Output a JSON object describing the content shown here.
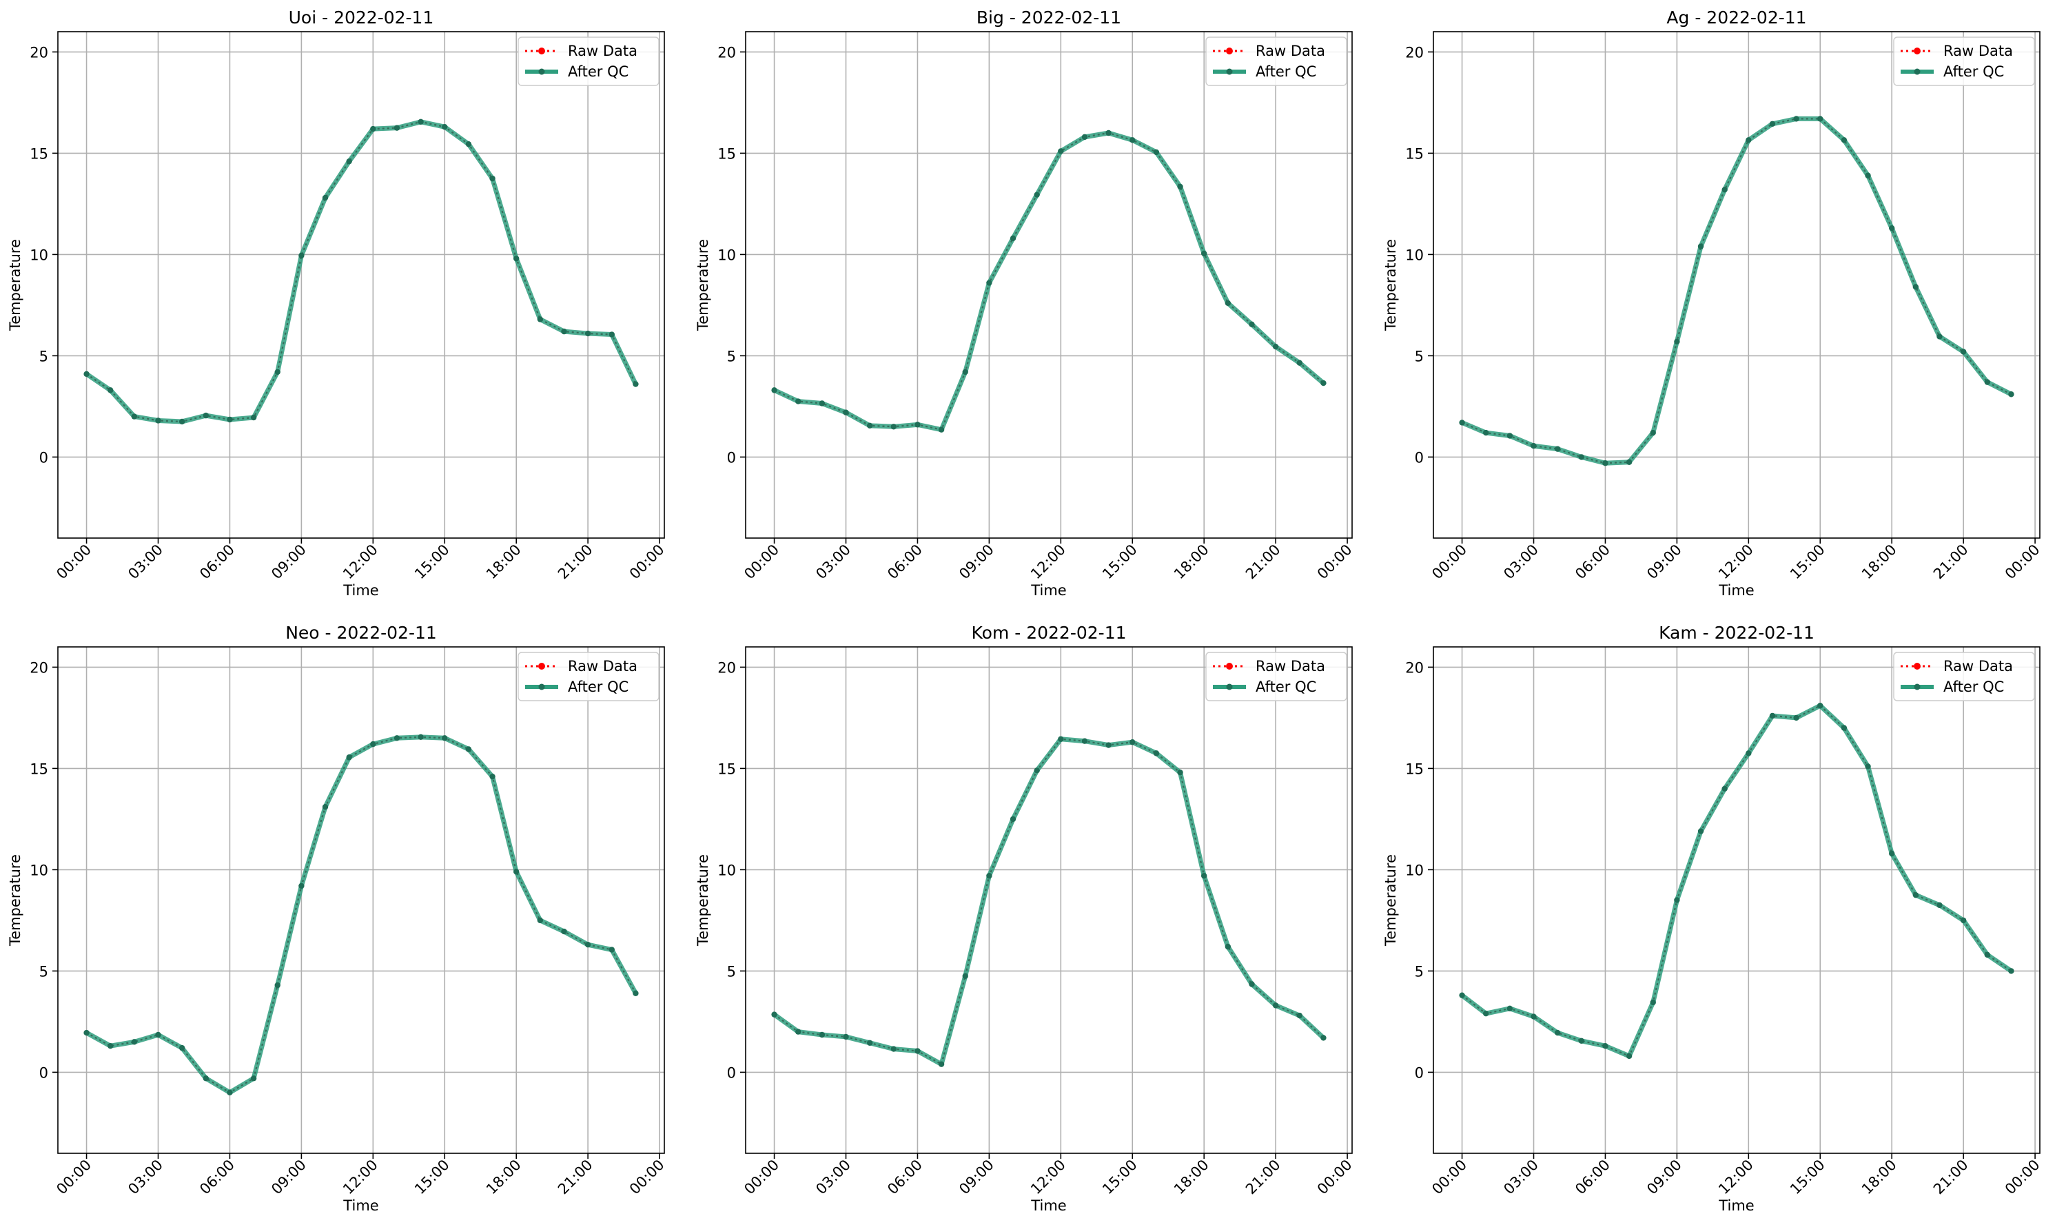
{
  "figure": {
    "legend_raw": "Raw Data",
    "legend_qc": "After QC",
    "xlabel": "Time",
    "ylabel": "Temperature",
    "xtick_labels": [
      "00:00",
      "03:00",
      "06:00",
      "09:00",
      "12:00",
      "15:00",
      "18:00",
      "21:00",
      "00:00"
    ],
    "ytick_labels": [
      "0",
      "5",
      "10",
      "15",
      "20"
    ],
    "colors": {
      "raw": "#ff0000",
      "qc": "#2e9e7e",
      "qc_dot": "#1f6e57",
      "grid": "#b0b0b0"
    }
  },
  "chart_data": [
    {
      "type": "line",
      "title": "Uoi - 2022-02-11",
      "xlabel": "Time",
      "ylabel": "Temperature",
      "ylim": [
        -4,
        21
      ],
      "xlim_hours": [
        -1.2,
        24.2
      ],
      "legend": "top-right",
      "grid": true,
      "x": [
        "00:00",
        "01:00",
        "02:00",
        "03:00",
        "04:00",
        "05:00",
        "06:00",
        "07:00",
        "08:00",
        "09:00",
        "10:00",
        "11:00",
        "12:00",
        "13:00",
        "14:00",
        "15:00",
        "16:00",
        "17:00",
        "18:00",
        "19:00",
        "20:00",
        "21:00",
        "22:00",
        "23:00"
      ],
      "series": [
        {
          "name": "Raw Data",
          "values": [
            4.1,
            3.3,
            2.0,
            1.8,
            1.75,
            2.05,
            1.85,
            1.95,
            4.2,
            9.95,
            12.8,
            14.6,
            16.2,
            16.25,
            16.55,
            16.3,
            15.45,
            13.75,
            9.8,
            6.8,
            6.2,
            6.1,
            6.05,
            3.6
          ]
        },
        {
          "name": "After QC",
          "values": [
            4.1,
            3.3,
            2.0,
            1.8,
            1.75,
            2.05,
            1.85,
            1.95,
            4.2,
            9.95,
            12.8,
            14.6,
            16.2,
            16.25,
            16.55,
            16.3,
            15.45,
            13.75,
            9.8,
            6.8,
            6.2,
            6.1,
            6.05,
            3.6
          ]
        }
      ]
    },
    {
      "type": "line",
      "title": "Big - 2022-02-11",
      "xlabel": "Time",
      "ylabel": "Temperature",
      "ylim": [
        -4,
        21
      ],
      "xlim_hours": [
        -1.2,
        24.2
      ],
      "legend": "top-right",
      "grid": true,
      "x": [
        "00:00",
        "01:00",
        "02:00",
        "03:00",
        "04:00",
        "05:00",
        "06:00",
        "07:00",
        "08:00",
        "09:00",
        "10:00",
        "11:00",
        "12:00",
        "13:00",
        "14:00",
        "15:00",
        "16:00",
        "17:00",
        "18:00",
        "19:00",
        "20:00",
        "21:00",
        "22:00",
        "23:00"
      ],
      "series": [
        {
          "name": "Raw Data",
          "values": [
            3.3,
            2.75,
            2.65,
            2.2,
            1.55,
            1.5,
            1.6,
            1.35,
            4.2,
            8.6,
            10.8,
            12.95,
            15.1,
            15.8,
            16.0,
            15.65,
            15.05,
            13.35,
            10.05,
            7.6,
            6.55,
            5.45,
            4.65,
            3.65
          ]
        },
        {
          "name": "After QC",
          "values": [
            3.3,
            2.75,
            2.65,
            2.2,
            1.55,
            1.5,
            1.6,
            1.35,
            4.2,
            8.6,
            10.8,
            12.95,
            15.1,
            15.8,
            16.0,
            15.65,
            15.05,
            13.35,
            10.05,
            7.6,
            6.55,
            5.45,
            4.65,
            3.65
          ]
        }
      ]
    },
    {
      "type": "line",
      "title": "Ag - 2022-02-11",
      "xlabel": "Time",
      "ylabel": "Temperature",
      "ylim": [
        -4,
        21
      ],
      "xlim_hours": [
        -1.2,
        24.2
      ],
      "legend": "top-right",
      "grid": true,
      "x": [
        "00:00",
        "01:00",
        "02:00",
        "03:00",
        "04:00",
        "05:00",
        "06:00",
        "07:00",
        "08:00",
        "09:00",
        "10:00",
        "11:00",
        "12:00",
        "13:00",
        "14:00",
        "15:00",
        "16:00",
        "17:00",
        "18:00",
        "19:00",
        "20:00",
        "21:00",
        "22:00",
        "23:00"
      ],
      "series": [
        {
          "name": "Raw Data",
          "values": [
            1.7,
            1.2,
            1.05,
            0.55,
            0.4,
            0.0,
            -0.3,
            -0.25,
            1.2,
            5.7,
            10.4,
            13.2,
            15.65,
            16.45,
            16.7,
            16.7,
            15.65,
            13.9,
            11.3,
            8.4,
            5.95,
            5.2,
            3.7,
            3.1
          ]
        },
        {
          "name": "After QC",
          "values": [
            1.7,
            1.2,
            1.05,
            0.55,
            0.4,
            0.0,
            -0.3,
            -0.25,
            1.2,
            5.7,
            10.4,
            13.2,
            15.65,
            16.45,
            16.7,
            16.7,
            15.65,
            13.9,
            11.3,
            8.4,
            5.95,
            5.2,
            3.7,
            3.1
          ]
        }
      ]
    },
    {
      "type": "line",
      "title": "Neo - 2022-02-11",
      "xlabel": "Time",
      "ylabel": "Temperature",
      "ylim": [
        -4,
        21
      ],
      "xlim_hours": [
        -1.2,
        24.2
      ],
      "legend": "top-right",
      "grid": true,
      "x": [
        "00:00",
        "01:00",
        "02:00",
        "03:00",
        "04:00",
        "05:00",
        "06:00",
        "07:00",
        "08:00",
        "09:00",
        "10:00",
        "11:00",
        "12:00",
        "13:00",
        "14:00",
        "15:00",
        "16:00",
        "17:00",
        "18:00",
        "19:00",
        "20:00",
        "21:00",
        "22:00",
        "23:00"
      ],
      "series": [
        {
          "name": "Raw Data",
          "values": [
            1.95,
            1.3,
            1.5,
            1.85,
            1.2,
            -0.3,
            -1.0,
            -0.3,
            4.3,
            9.2,
            13.1,
            15.55,
            16.2,
            16.5,
            16.55,
            16.5,
            15.95,
            14.6,
            9.9,
            7.5,
            6.95,
            6.3,
            6.05,
            3.9
          ]
        },
        {
          "name": "After QC",
          "values": [
            1.95,
            1.3,
            1.5,
            1.85,
            1.2,
            -0.3,
            -1.0,
            -0.3,
            4.3,
            9.2,
            13.1,
            15.55,
            16.2,
            16.5,
            16.55,
            16.5,
            15.95,
            14.6,
            9.9,
            7.5,
            6.95,
            6.3,
            6.05,
            3.9
          ]
        }
      ]
    },
    {
      "type": "line",
      "title": "Kom - 2022-02-11",
      "xlabel": "Time",
      "ylabel": "Temperature",
      "ylim": [
        -4,
        21
      ],
      "xlim_hours": [
        -1.2,
        24.2
      ],
      "legend": "top-right",
      "grid": true,
      "x": [
        "00:00",
        "01:00",
        "02:00",
        "03:00",
        "04:00",
        "05:00",
        "06:00",
        "07:00",
        "08:00",
        "09:00",
        "10:00",
        "11:00",
        "12:00",
        "13:00",
        "14:00",
        "15:00",
        "16:00",
        "17:00",
        "18:00",
        "19:00",
        "20:00",
        "21:00",
        "22:00",
        "23:00"
      ],
      "series": [
        {
          "name": "Raw Data",
          "values": [
            2.85,
            2.0,
            1.85,
            1.75,
            1.45,
            1.15,
            1.05,
            0.4,
            4.75,
            9.7,
            12.5,
            14.9,
            16.45,
            16.35,
            16.15,
            16.3,
            15.75,
            14.8,
            9.7,
            6.2,
            4.35,
            3.3,
            2.8,
            1.7
          ]
        },
        {
          "name": "After QC",
          "values": [
            2.85,
            2.0,
            1.85,
            1.75,
            1.45,
            1.15,
            1.05,
            0.4,
            4.75,
            9.7,
            12.5,
            14.9,
            16.45,
            16.35,
            16.15,
            16.3,
            15.75,
            14.8,
            9.7,
            6.2,
            4.35,
            3.3,
            2.8,
            1.7
          ]
        }
      ]
    },
    {
      "type": "line",
      "title": "Kam - 2022-02-11",
      "xlabel": "Time",
      "ylabel": "Temperature",
      "ylim": [
        -4,
        21
      ],
      "xlim_hours": [
        -1.2,
        24.2
      ],
      "legend": "top-right",
      "grid": true,
      "x": [
        "00:00",
        "01:00",
        "02:00",
        "03:00",
        "04:00",
        "05:00",
        "06:00",
        "07:00",
        "08:00",
        "09:00",
        "10:00",
        "11:00",
        "12:00",
        "13:00",
        "14:00",
        "15:00",
        "16:00",
        "17:00",
        "18:00",
        "19:00",
        "20:00",
        "21:00",
        "22:00",
        "23:00"
      ],
      "series": [
        {
          "name": "Raw Data",
          "values": [
            3.8,
            2.9,
            3.15,
            2.75,
            1.95,
            1.55,
            1.3,
            0.8,
            3.45,
            8.5,
            11.9,
            14.0,
            15.75,
            17.6,
            17.5,
            18.1,
            17.0,
            15.1,
            10.8,
            8.75,
            8.25,
            7.5,
            5.8,
            5.0
          ]
        },
        {
          "name": "After QC",
          "values": [
            3.8,
            2.9,
            3.15,
            2.75,
            1.95,
            1.55,
            1.3,
            0.8,
            3.45,
            8.5,
            11.9,
            14.0,
            15.75,
            17.6,
            17.5,
            18.1,
            17.0,
            15.1,
            10.8,
            8.75,
            8.25,
            7.5,
            5.8,
            5.0
          ]
        }
      ]
    }
  ]
}
